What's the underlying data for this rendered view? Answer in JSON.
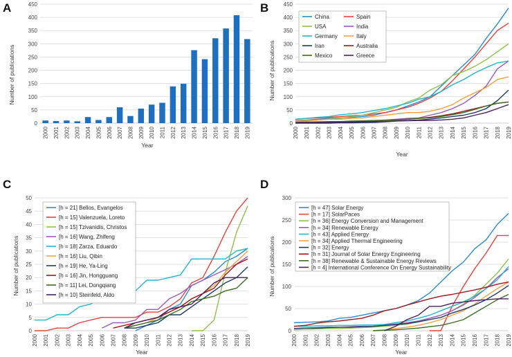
{
  "colors": {
    "China": "#2a8bd0",
    "Spain": "#e8403a",
    "USA": "#8dc04a",
    "India": "#9b59b6",
    "Germany": "#20b5c8",
    "Italy": "#f4a03a",
    "Iran": "#1c3a66",
    "Australia": "#a0151a",
    "Mexico": "#3d6b1e",
    "Greece": "#4a1f5e",
    "Bar": "#1f6fc0"
  },
  "chart_data": [
    {
      "panel": "A",
      "type": "bar",
      "title": "",
      "xlabel": "Year",
      "ylabel": "Number of publications",
      "ylim": [
        0,
        450
      ],
      "yticks": [
        0,
        50,
        100,
        150,
        200,
        250,
        300,
        350,
        400,
        450
      ],
      "categories": [
        "2000",
        "2001",
        "2002",
        "2003",
        "2004",
        "2005",
        "2006",
        "2007",
        "2008",
        "2009",
        "2010",
        "2011",
        "2012",
        "2013",
        "2014",
        "2015",
        "2016",
        "2017",
        "2018",
        "2019"
      ],
      "values": [
        10,
        8,
        10,
        7,
        23,
        12,
        23,
        60,
        27,
        55,
        70,
        77,
        139,
        149,
        276,
        242,
        321,
        358,
        408,
        318
      ],
      "grid": true
    },
    {
      "panel": "B",
      "type": "line",
      "xlabel": "Year",
      "ylabel": "Number of publications",
      "ylim": [
        0,
        450
      ],
      "yticks": [
        0,
        50,
        100,
        150,
        200,
        250,
        300,
        350,
        400,
        450
      ],
      "categories": [
        "2000",
        "2001",
        "2002",
        "2003",
        "2004",
        "2005",
        "2006",
        "2007",
        "2008",
        "2009",
        "2010",
        "2011",
        "2012",
        "2013",
        "2014",
        "2015",
        "2016",
        "2017",
        "2018",
        "2019"
      ],
      "legend_position": "top-left",
      "legend_columns": 2,
      "series": [
        {
          "name": "China",
          "values": [
            10,
            12,
            15,
            18,
            20,
            22,
            25,
            30,
            40,
            50,
            65,
            80,
            100,
            140,
            180,
            220,
            260,
            320,
            375,
            435
          ]
        },
        {
          "name": "Spain",
          "values": [
            15,
            18,
            20,
            22,
            25,
            28,
            30,
            35,
            40,
            50,
            60,
            75,
            95,
            120,
            160,
            205,
            250,
            300,
            350,
            378
          ]
        },
        {
          "name": "USA",
          "values": [
            5,
            8,
            12,
            15,
            18,
            25,
            30,
            40,
            50,
            60,
            80,
            95,
            125,
            145,
            180,
            195,
            215,
            240,
            270,
            300
          ]
        },
        {
          "name": "India",
          "values": [
            2,
            3,
            3,
            4,
            5,
            6,
            8,
            10,
            12,
            15,
            18,
            20,
            30,
            40,
            55,
            75,
            105,
            140,
            205,
            235
          ]
        },
        {
          "name": "Germany",
          "values": [
            15,
            18,
            22,
            25,
            32,
            35,
            40,
            48,
            55,
            65,
            75,
            90,
            100,
            120,
            145,
            165,
            190,
            210,
            228,
            235
          ]
        },
        {
          "name": "Italy",
          "values": [
            8,
            10,
            12,
            15,
            15,
            18,
            20,
            25,
            30,
            35,
            40,
            40,
            45,
            55,
            70,
            95,
            115,
            135,
            165,
            175
          ]
        },
        {
          "name": "Iran",
          "values": [
            0,
            0,
            0,
            0,
            1,
            1,
            2,
            3,
            5,
            8,
            10,
            12,
            15,
            20,
            25,
            30,
            40,
            55,
            85,
            125
          ]
        },
        {
          "name": "Australia",
          "values": [
            2,
            3,
            4,
            5,
            5,
            6,
            8,
            8,
            10,
            12,
            15,
            18,
            22,
            28,
            35,
            45,
            55,
            65,
            75,
            80
          ]
        },
        {
          "name": "Mexico",
          "values": [
            3,
            4,
            5,
            6,
            6,
            8,
            9,
            10,
            10,
            12,
            15,
            18,
            20,
            25,
            32,
            40,
            52,
            65,
            75,
            80
          ]
        },
        {
          "name": "Greece",
          "values": [
            2,
            2,
            3,
            3,
            4,
            4,
            5,
            5,
            6,
            8,
            9,
            10,
            10,
            12,
            15,
            20,
            30,
            40,
            55,
            70
          ]
        }
      ],
      "grid": true
    },
    {
      "panel": "C",
      "type": "line",
      "xlabel": "Year",
      "ylabel": "Number of publications",
      "ylim": [
        0,
        50
      ],
      "yticks": [
        0,
        5,
        10,
        15,
        20,
        25,
        30,
        35,
        40,
        45,
        50
      ],
      "categories": [
        "2000",
        "2001",
        "2002",
        "2003",
        "2004",
        "2005",
        "2006",
        "2007",
        "2008",
        "2009",
        "2010",
        "2011",
        "2012",
        "2013",
        "2014",
        "2015",
        "2016",
        "2017",
        "2018",
        "2019"
      ],
      "legend_position": "top-left",
      "legend_columns": 1,
      "series": [
        {
          "name": "[h = 21] Bellos, Evangelos",
          "color_key": "China",
          "values": [
            null,
            null,
            null,
            null,
            null,
            null,
            null,
            null,
            null,
            0,
            2,
            4,
            8,
            10,
            17,
            19,
            22,
            26,
            28,
            31
          ]
        },
        {
          "name": "[h = 15] Valenzuela, Loreto",
          "color_key": "Spain",
          "values": [
            0,
            0,
            1,
            1,
            3,
            4,
            5,
            5,
            5,
            5,
            7,
            7,
            9,
            12,
            18,
            20,
            28,
            37,
            45,
            50
          ]
        },
        {
          "name": "[h = 15] Tzivanidis, Christos",
          "color_key": "USA",
          "values": [
            null,
            null,
            null,
            null,
            null,
            null,
            null,
            null,
            null,
            null,
            null,
            null,
            null,
            null,
            0,
            0,
            4,
            22,
            37,
            47
          ]
        },
        {
          "name": "[h = 16] Wang, Zhifeng",
          "color_key": "India",
          "values": [
            null,
            null,
            null,
            null,
            null,
            null,
            1,
            3,
            3,
            4,
            8,
            8,
            12,
            14,
            17,
            19,
            21,
            23,
            25,
            28
          ]
        },
        {
          "name": "[h = 18] Zarza, Eduardo",
          "color_key": "Germany",
          "values": [
            4,
            4,
            6,
            6,
            9,
            10,
            13,
            14,
            15,
            15,
            19,
            19,
            20,
            21,
            27,
            27,
            27,
            27,
            30,
            31
          ]
        },
        {
          "name": "[h = 16] Liu, Qibin",
          "color_key": "Italy",
          "values": [
            null,
            null,
            null,
            null,
            null,
            null,
            null,
            null,
            1,
            2,
            3,
            5,
            7,
            9,
            12,
            14,
            17,
            22,
            26,
            30
          ]
        },
        {
          "name": "[h = 19] He, Ya-Ling",
          "color_key": "Iran",
          "values": [
            null,
            null,
            null,
            null,
            null,
            null,
            null,
            null,
            1,
            1,
            2,
            3,
            6,
            6,
            9,
            12,
            15,
            18,
            20,
            24
          ]
        },
        {
          "name": "[h = 16] Jin, Hongguang",
          "color_key": "Australia",
          "values": [
            null,
            null,
            null,
            null,
            null,
            null,
            null,
            1,
            2,
            3,
            4,
            5,
            7,
            9,
            12,
            14,
            16,
            21,
            25,
            27
          ]
        },
        {
          "name": "[h = 11] Lei, Dongqiang",
          "color_key": "Mexico",
          "values": [
            null,
            null,
            null,
            null,
            null,
            null,
            null,
            null,
            1,
            2,
            3,
            4,
            6,
            8,
            11,
            12,
            13,
            15,
            16,
            20
          ]
        },
        {
          "name": "[h = 10] Steinfeld, Aldo",
          "color_key": "Greece",
          "values": [
            null,
            null,
            null,
            null,
            null,
            null,
            null,
            null,
            1,
            3,
            4,
            5,
            8,
            9,
            10,
            14,
            18,
            20,
            20,
            20
          ]
        }
      ],
      "grid": true
    },
    {
      "panel": "D",
      "type": "line",
      "xlabel": "Year",
      "ylabel": "Number of publications",
      "ylim": [
        0,
        300
      ],
      "yticks": [
        0,
        50,
        100,
        150,
        200,
        250,
        300
      ],
      "categories": [
        "2000",
        "2001",
        "2002",
        "2003",
        "2004",
        "2005",
        "2006",
        "2007",
        "2008",
        "2009",
        "2010",
        "2011",
        "2012",
        "2013",
        "2014",
        "2015",
        "2016",
        "2017",
        "2018",
        "2019"
      ],
      "legend_position": "top-left",
      "legend_columns": 1,
      "series": [
        {
          "name": "[h = 47] Solar Energy",
          "color_key": "China",
          "values": [
            18,
            19,
            20,
            22,
            28,
            30,
            35,
            40,
            45,
            50,
            58,
            68,
            85,
            110,
            135,
            155,
            185,
            205,
            240,
            265
          ]
        },
        {
          "name": "[h = 17] SolarPaces",
          "color_key": "Spain",
          "values": [
            null,
            null,
            null,
            null,
            null,
            null,
            null,
            null,
            null,
            null,
            null,
            null,
            0,
            0,
            55,
            100,
            140,
            175,
            215,
            215
          ]
        },
        {
          "name": "[h = 36] Energy Conversion and Management",
          "color_key": "USA",
          "values": [
            2,
            3,
            4,
            5,
            5,
            6,
            7,
            8,
            10,
            12,
            15,
            20,
            28,
            35,
            45,
            60,
            80,
            105,
            130,
            162
          ]
        },
        {
          "name": "[h = 34] Renewable Energy",
          "color_key": "India",
          "values": [
            5,
            6,
            7,
            8,
            8,
            9,
            10,
            10,
            12,
            15,
            18,
            22,
            28,
            35,
            45,
            58,
            75,
            95,
            120,
            140
          ]
        },
        {
          "name": "[h = 43] Applied Energy",
          "color_key": "Germany",
          "values": [
            10,
            10,
            11,
            11,
            12,
            12,
            13,
            13,
            14,
            18,
            22,
            28,
            35,
            45,
            55,
            65,
            78,
            95,
            115,
            145
          ]
        },
        {
          "name": "[h = 34] Applied Thermal Engineering",
          "color_key": "Italy",
          "values": [
            null,
            null,
            null,
            null,
            null,
            null,
            null,
            0,
            2,
            5,
            8,
            12,
            18,
            25,
            35,
            45,
            60,
            78,
            95,
            110
          ]
        },
        {
          "name": "[h = 32] Energy",
          "color_key": "Iran",
          "values": [
            5,
            6,
            6,
            7,
            8,
            8,
            9,
            10,
            12,
            14,
            16,
            20,
            25,
            30,
            40,
            48,
            58,
            70,
            85,
            102
          ]
        },
        {
          "name": "[h = 31] Journal of Solar Energy Engineering",
          "color_key": "Australia",
          "values": [
            10,
            12,
            17,
            20,
            22,
            25,
            28,
            35,
            45,
            50,
            58,
            65,
            72,
            78,
            82,
            87,
            92,
            98,
            105,
            110
          ]
        },
        {
          "name": "[h = 38] Renewable & Sustainable Energy Reviews",
          "color_key": "Mexico",
          "values": [
            null,
            null,
            null,
            null,
            null,
            null,
            null,
            0,
            1,
            2,
            4,
            6,
            9,
            12,
            18,
            25,
            40,
            55,
            70,
            82
          ]
        },
        {
          "name": "[h = 4] International Conference On Energy Sustainability",
          "color_key": "Greece",
          "values": [
            null,
            null,
            null,
            null,
            null,
            null,
            null,
            null,
            0,
            10,
            25,
            35,
            55,
            55,
            62,
            65,
            68,
            70,
            72,
            72
          ]
        }
      ],
      "grid": true
    }
  ]
}
